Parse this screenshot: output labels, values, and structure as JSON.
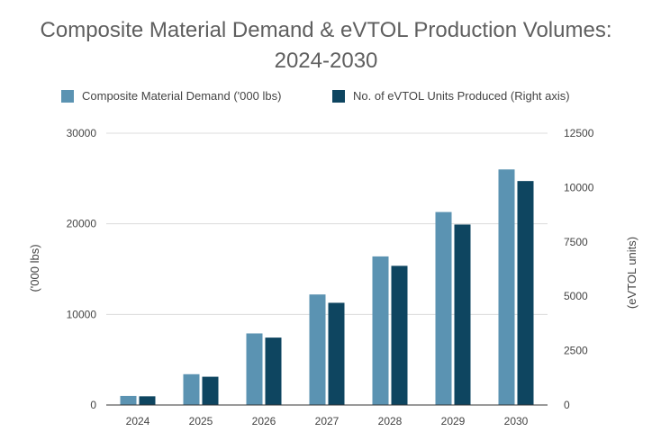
{
  "chart_data": {
    "type": "bar",
    "title_lines": [
      "Composite Material Demand & eVTOL Production Volumes:",
      "2024-2030"
    ],
    "categories": [
      "2024",
      "2025",
      "2026",
      "2027",
      "2028",
      "2029",
      "2030"
    ],
    "series": [
      {
        "name": "Composite Material Demand ('000 lbs)",
        "axis": "left",
        "color": "#5b93b2",
        "values": [
          1000,
          3400,
          7900,
          12200,
          16400,
          21300,
          26000
        ]
      },
      {
        "name": "No. of eVTOL Units Produced (Right axis)",
        "axis": "right",
        "color": "#0e4560",
        "values": [
          400,
          1300,
          3100,
          4700,
          6400,
          8300,
          10300
        ]
      }
    ],
    "y_left": {
      "label": "('000 lbs)",
      "ylim": [
        0,
        30000
      ],
      "ticks": [
        "0",
        "10000",
        "20000",
        "30000"
      ]
    },
    "y_right": {
      "label": "(eVTOL units)",
      "ylim": [
        0,
        12500
      ],
      "ticks": [
        "0",
        "2500",
        "5000",
        "7500",
        "10000",
        "12500"
      ]
    },
    "grid": true,
    "legend_position": "top"
  }
}
